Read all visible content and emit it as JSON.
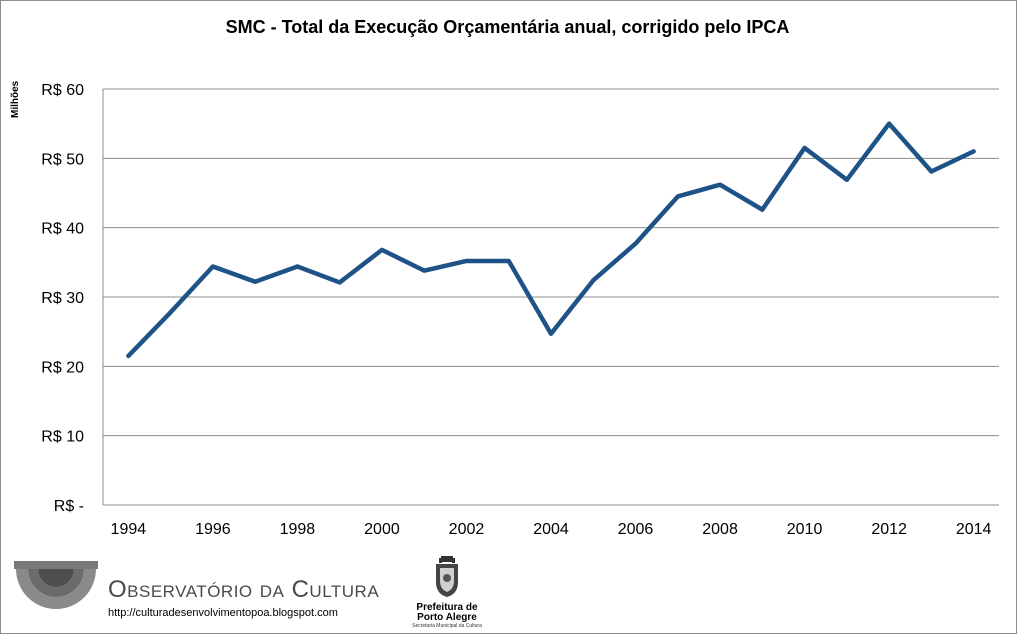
{
  "chart_data": {
    "type": "line",
    "title": "SMC - Total da  Execução Orçamentária anual, corrigido pelo IPCA",
    "ylabel": "Milhões",
    "xlabel": "",
    "ylim": [
      0,
      60
    ],
    "yticks": [
      0,
      10,
      20,
      30,
      40,
      50,
      60
    ],
    "ytick_labels": [
      "R$ -",
      "R$ 10",
      "R$ 20",
      "R$ 30",
      "R$ 40",
      "R$ 50",
      "R$ 60"
    ],
    "xtick_labels": [
      "1994",
      "1996",
      "1998",
      "2000",
      "2002",
      "2004",
      "2006",
      "2008",
      "2010",
      "2012",
      "2014"
    ],
    "grid": true,
    "line_color": "#1f5387",
    "series": [
      {
        "x": [
          1994,
          1995,
          1996,
          1997,
          1998,
          1999,
          2000,
          2001,
          2002,
          2003,
          2004,
          2005,
          2006,
          2007,
          2008,
          2009,
          2010,
          2011,
          2012,
          2013,
          2014
        ],
        "values": [
          21.5,
          27.8,
          34.4,
          32.2,
          34.4,
          32.1,
          36.8,
          33.8,
          35.2,
          35.2,
          24.7,
          32.4,
          37.7,
          44.5,
          46.2,
          42.6,
          51.5,
          46.9,
          55.0,
          48.1,
          51.0
        ]
      }
    ]
  },
  "footer": {
    "observatorio": "Observatório da Cultura",
    "url": "http://culturadesenvolvimentopoa.blogspot.com",
    "prefeitura_line1": "Prefeitura de",
    "prefeitura_line2": "Porto Alegre",
    "prefeitura_sub": "Secretaria Municipal da Cultura"
  }
}
